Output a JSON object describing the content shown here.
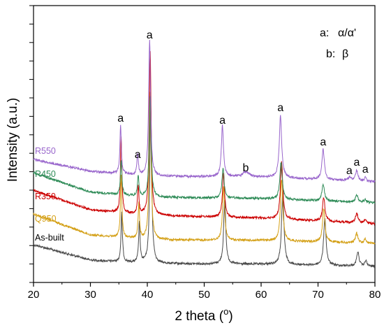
{
  "chart_data": {
    "type": "line",
    "xlabel": "2 theta (",
    "xlabel_unit": "o",
    "xlabel_end": ")",
    "ylabel": "Intensity (a.u.)",
    "xlim": [
      20,
      80
    ],
    "x_ticks": [
      "20",
      "30",
      "40",
      "50",
      "60",
      "70",
      "80"
    ],
    "y_tick_count": 15,
    "grid": false,
    "legend": {
      "position": "top-right",
      "entries": [
        {
          "key": "a:",
          "value": "α/α'"
        },
        {
          "key": "b:",
          "value": "β"
        }
      ]
    },
    "series": [
      {
        "name": "As-built",
        "color": "#4a4a4a",
        "offset": 0,
        "baseline": [
          [
            20,
            350
          ],
          [
            30,
            372
          ],
          [
            40,
            377
          ],
          [
            60,
            378
          ],
          [
            80,
            381
          ]
        ],
        "peaks": [
          [
            35.5,
            70,
            0.15
          ],
          [
            38.6,
            58,
            0.15
          ],
          [
            40.6,
            230,
            0.2
          ],
          [
            53.6,
            92,
            0.22
          ],
          [
            63.8,
            102,
            0.25
          ],
          [
            71.2,
            68,
            0.25
          ],
          [
            77.0,
            20,
            0.25
          ],
          [
            78.4,
            8,
            0.2
          ]
        ]
      },
      {
        "name": "Q950",
        "color": "#d4a017",
        "offset": -33,
        "baseline": [
          [
            20,
            306
          ],
          [
            30,
            336
          ],
          [
            40,
            343
          ],
          [
            60,
            344
          ],
          [
            80,
            348
          ]
        ],
        "peaks": [
          [
            35.4,
            90,
            0.15
          ],
          [
            38.5,
            50,
            0.15
          ],
          [
            40.5,
            210,
            0.2
          ],
          [
            53.4,
            78,
            0.22
          ],
          [
            63.6,
            88,
            0.25
          ],
          [
            71.0,
            48,
            0.25
          ],
          [
            76.8,
            14,
            0.25
          ],
          [
            78.3,
            6,
            0.2
          ]
        ]
      },
      {
        "name": "R350",
        "color": "#cc0000",
        "offset": -56,
        "baseline": [
          [
            20,
            272
          ],
          [
            30,
            300
          ],
          [
            40,
            308
          ],
          [
            60,
            312
          ],
          [
            80,
            320
          ]
        ],
        "peaks": [
          [
            35.4,
            110,
            0.15
          ],
          [
            38.4,
            40,
            0.15
          ],
          [
            40.5,
            235,
            0.2
          ],
          [
            53.4,
            64,
            0.22
          ],
          [
            63.6,
            82,
            0.25
          ],
          [
            71.0,
            34,
            0.25
          ],
          [
            76.8,
            14,
            0.25
          ],
          [
            78.3,
            6,
            0.2
          ]
        ]
      },
      {
        "name": "R450",
        "color": "#2e8b57",
        "offset": -88,
        "baseline": [
          [
            20,
            247
          ],
          [
            30,
            275
          ],
          [
            40,
            282
          ],
          [
            60,
            284
          ],
          [
            80,
            290
          ]
        ],
        "peaks": [
          [
            35.4,
            50,
            0.15
          ],
          [
            38.4,
            30,
            0.15
          ],
          [
            40.5,
            145,
            0.2
          ],
          [
            53.3,
            43,
            0.22
          ],
          [
            63.5,
            53,
            0.25
          ],
          [
            70.9,
            24,
            0.25
          ],
          [
            76.8,
            10,
            0.25
          ],
          [
            78.3,
            5,
            0.2
          ]
        ]
      },
      {
        "name": "R550",
        "color": "#9966cc",
        "offset": -118,
        "baseline": [
          [
            20,
            228
          ],
          [
            30,
            245
          ],
          [
            40,
            252
          ],
          [
            60,
            253
          ],
          [
            80,
            260
          ]
        ],
        "peaks": [
          [
            35.3,
            70,
            0.15
          ],
          [
            38.3,
            30,
            0.15
          ],
          [
            40.4,
            195,
            0.2
          ],
          [
            53.2,
            73,
            0.22
          ],
          [
            57.3,
            7,
            0.6
          ],
          [
            63.4,
            88,
            0.25
          ],
          [
            70.9,
            44,
            0.25
          ],
          [
            75.5,
            4,
            0.4
          ],
          [
            76.8,
            15,
            0.25
          ],
          [
            78.3,
            5,
            0.2
          ]
        ]
      }
    ],
    "annotations": [
      {
        "text": "a",
        "x": 35.3,
        "y": 174
      },
      {
        "text": "a",
        "x": 38.3,
        "y": 226
      },
      {
        "text": "a",
        "x": 40.4,
        "y": 55
      },
      {
        "text": "a",
        "x": 53.2,
        "y": 177
      },
      {
        "text": "b",
        "x": 57.3,
        "y": 245
      },
      {
        "text": "a",
        "x": 63.4,
        "y": 159
      },
      {
        "text": "a",
        "x": 70.9,
        "y": 208
      },
      {
        "text": "a",
        "x": 75.5,
        "y": 249
      },
      {
        "text": "a",
        "x": 76.8,
        "y": 237
      },
      {
        "text": "a",
        "x": 78.3,
        "y": 247
      }
    ]
  }
}
